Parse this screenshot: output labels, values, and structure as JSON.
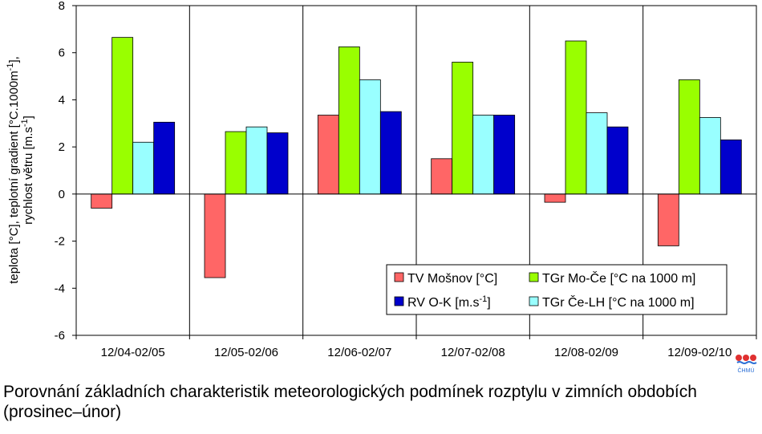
{
  "caption": "Porovnání základních charakteristik meteorologických podmínek rozptylu v zimních obdobích (prosinec–únor)",
  "logo_text": "ČHMÚ",
  "chart_data": {
    "type": "bar",
    "categories": [
      "12/04-02/05",
      "12/05-02/06",
      "12/06-02/07",
      "12/07-02/08",
      "12/08-02/09",
      "12/09-02/10"
    ],
    "ylim": [
      -6,
      8
    ],
    "yticks": [
      -6,
      -4,
      -2,
      0,
      2,
      4,
      6,
      8
    ],
    "ylabel": {
      "line1_pre": "teplota [°C], teplotní gradient [°C.1000m",
      "line1_sup": "-1",
      "line1_post": "],",
      "line2_pre": "rychlost větru [m.s",
      "line2_sup": "-1",
      "line2_post": "]"
    },
    "grid": "vertical",
    "legend_position": "bottom-right",
    "series": [
      {
        "name": "TV Mošnov [°C]",
        "color": "#ff6666",
        "values": [
          -0.6,
          -3.55,
          3.35,
          1.5,
          -0.35,
          -2.2
        ]
      },
      {
        "name": "TGr Mo-Če [°C na 1000 m]",
        "color": "#99ff00",
        "values": [
          6.65,
          2.65,
          6.25,
          5.6,
          6.5,
          4.85
        ]
      },
      {
        "name": "TGr Če-LH [°C na 1000 m]",
        "color": "#99ffff",
        "values": [
          2.2,
          2.85,
          4.85,
          3.35,
          3.45,
          3.25
        ]
      },
      {
        "name": "RV O-K [m.s-1]",
        "name_pre": "RV O-K [m.s",
        "name_sup": "-1",
        "name_post": "]",
        "color": "#0000cc",
        "values": [
          3.05,
          2.6,
          3.5,
          3.35,
          2.85,
          2.3
        ]
      }
    ]
  }
}
